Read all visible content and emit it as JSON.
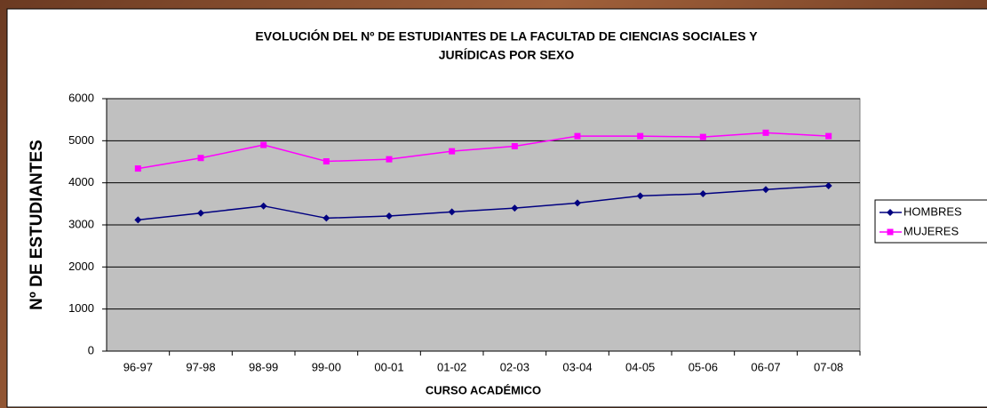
{
  "chart_data": {
    "type": "line",
    "title": [
      "EVOLUCIÓN DEL Nº DE ESTUDIANTES DE LA FACULTAD DE CIENCIAS SOCIALES Y",
      "JURÍDICAS POR SEXO"
    ],
    "x_label": "CURSO ACADÉMICO",
    "y_label": "Nº DE ESTUDIANTES",
    "categories": [
      "96-97",
      "97-98",
      "98-99",
      "99-00",
      "00-01",
      "01-02",
      "02-03",
      "03-04",
      "04-05",
      "05-06",
      "06-07",
      "07-08"
    ],
    "series": [
      {
        "name": "HOMBRES",
        "color": "#000080",
        "marker": "diamond",
        "values": [
          3120,
          3280,
          3450,
          3160,
          3210,
          3310,
          3400,
          3520,
          3690,
          3740,
          3840,
          3930
        ]
      },
      {
        "name": "MUJERES",
        "color": "#ff00ff",
        "marker": "square",
        "values": [
          4340,
          4590,
          4900,
          4510,
          4560,
          4750,
          4870,
          5110,
          5110,
          5090,
          5190,
          5110
        ]
      }
    ],
    "ylim": [
      0,
      6000
    ],
    "yticks": [
      0,
      1000,
      2000,
      3000,
      4000,
      5000,
      6000
    ],
    "grid": true,
    "plot_background": "#c0c0c0",
    "legend": "right"
  }
}
